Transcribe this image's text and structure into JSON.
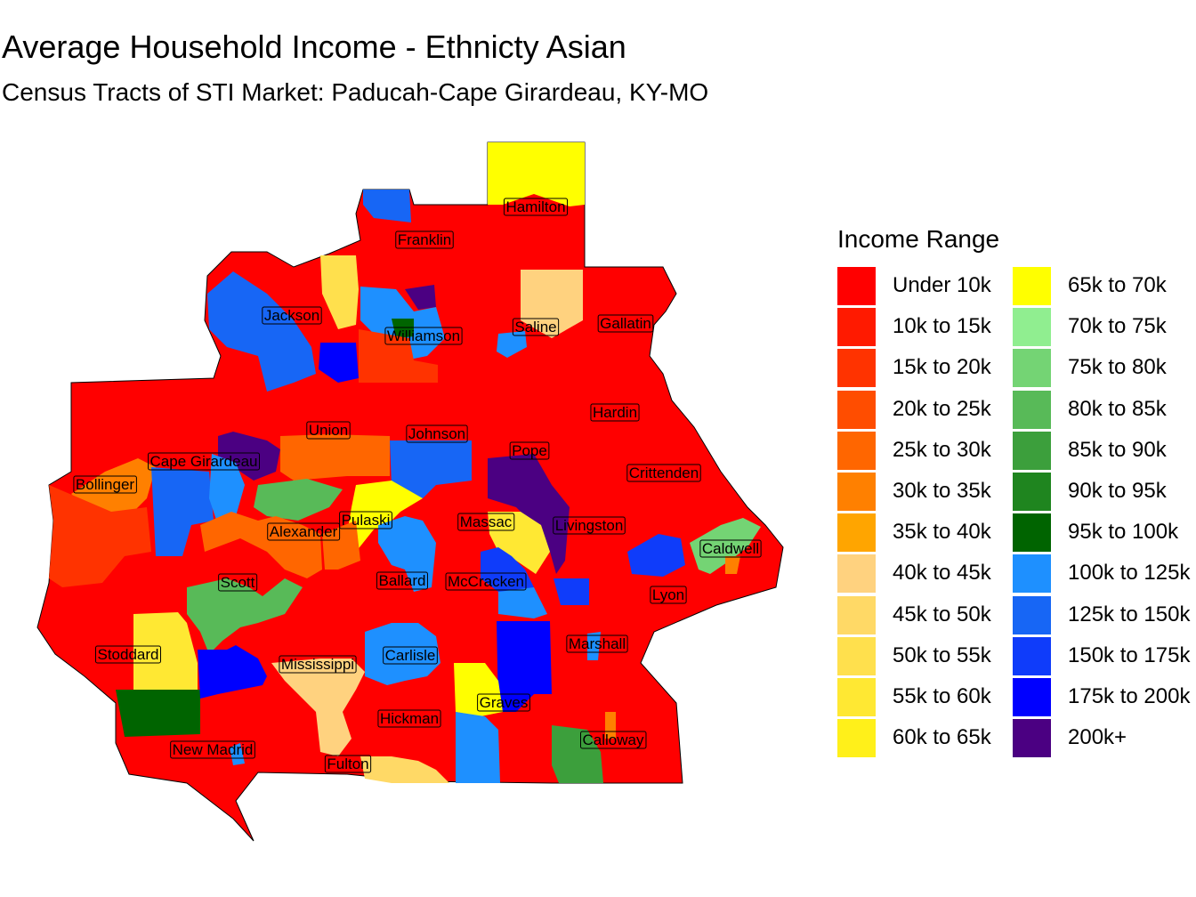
{
  "title": "Average Household Income - Ethnicty Asian",
  "subtitle": "Census Tracts of STI Market: Paducah-Cape Girardeau, KY-MO",
  "legend": {
    "title": "Income Range",
    "items": [
      {
        "label": "Under 10k",
        "color": "#ff0000"
      },
      {
        "label": "10k to 15k",
        "color": "#ff1a00"
      },
      {
        "label": "15k to 20k",
        "color": "#ff3300"
      },
      {
        "label": "20k to 25k",
        "color": "#ff4d00"
      },
      {
        "label": "25k to 30k",
        "color": "#ff6600"
      },
      {
        "label": "30k to 35k",
        "color": "#ff8000"
      },
      {
        "label": "35k to 40k",
        "color": "#ffa500"
      },
      {
        "label": "40k to 45k",
        "color": "#ffd27f"
      },
      {
        "label": "45k to 50k",
        "color": "#ffd966"
      },
      {
        "label": "50k to 55k",
        "color": "#ffe04d"
      },
      {
        "label": "55k to 60k",
        "color": "#ffe833"
      },
      {
        "label": "60k to 65k",
        "color": "#fff01a"
      },
      {
        "label": "65k to 70k",
        "color": "#ffff00"
      },
      {
        "label": "70k to 75k",
        "color": "#90ee90"
      },
      {
        "label": "75k to 80k",
        "color": "#74d474"
      },
      {
        "label": "80k to 85k",
        "color": "#58ba58"
      },
      {
        "label": "85k to 90k",
        "color": "#3c9f3c"
      },
      {
        "label": "90k to 95k",
        "color": "#1f851f"
      },
      {
        "label": "95k to 100k",
        "color": "#006400"
      },
      {
        "label": "100k to 125k",
        "color": "#1e90ff"
      },
      {
        "label": "125k to 150k",
        "color": "#1766f5"
      },
      {
        "label": "150k to 175k",
        "color": "#0f3cfa"
      },
      {
        "label": "175k to 200k",
        "color": "#0000ff"
      },
      {
        "label": "200k+",
        "color": "#4b0082"
      }
    ]
  },
  "counties": [
    "Hamilton",
    "Franklin",
    "Jackson",
    "Williamson",
    "Saline",
    "Gallatin",
    "Hardin",
    "Union",
    "Johnson",
    "Pope",
    "Cape Girardeau",
    "Crittenden",
    "Bollinger",
    "Pulaski",
    "Massac",
    "Livingston",
    "Alexander",
    "Caldwell",
    "Scott",
    "Ballard",
    "McCracken",
    "Lyon",
    "Stoddard",
    "Marshall",
    "Mississippi",
    "Carlisle",
    "Graves",
    "Hickman",
    "Calloway",
    "New Madrid",
    "Fulton"
  ]
}
